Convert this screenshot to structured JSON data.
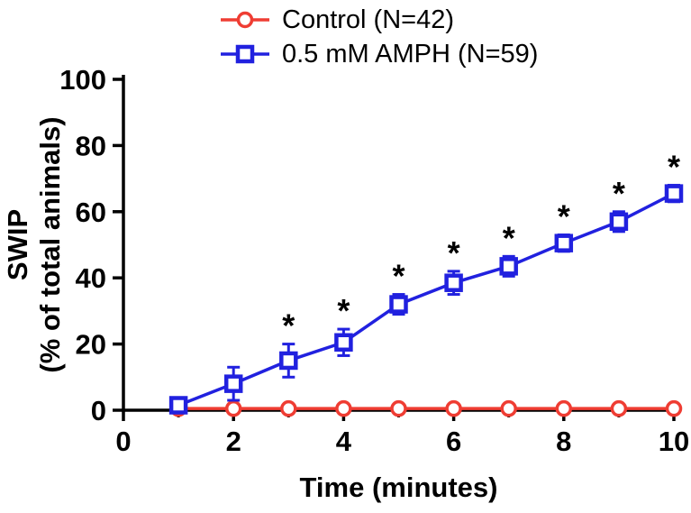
{
  "figure": {
    "background": "#FFFFFF",
    "significance_symbol": "*"
  },
  "chart_data": {
    "type": "line",
    "title": "",
    "xlabel": "Time (minutes)",
    "ylabel": [
      "SWIP",
      "(% of total animals)"
    ],
    "xlim": [
      0,
      10
    ],
    "ylim": [
      0,
      100
    ],
    "x_major_ticks": [
      0,
      2,
      4,
      6,
      8,
      10
    ],
    "x_minor_ticks": [
      1,
      3,
      5,
      7,
      9
    ],
    "y_ticks": [
      0,
      20,
      40,
      60,
      80,
      100
    ],
    "grid": false,
    "legend_position": "top",
    "x": [
      1,
      2,
      3,
      4,
      5,
      6,
      7,
      8,
      9,
      10
    ],
    "series": [
      {
        "name": "Control (N=42)",
        "color": "#EF3D33",
        "marker": "circle",
        "values": [
          0.5,
          0.5,
          0.5,
          0.5,
          0.5,
          0.5,
          0.5,
          0.5,
          0.5,
          0.5
        ],
        "errors": [
          0,
          0,
          0,
          0,
          0,
          0,
          0,
          0,
          0,
          0
        ],
        "significant": [
          false,
          false,
          false,
          false,
          false,
          false,
          false,
          false,
          false,
          false
        ]
      },
      {
        "name": "0.5 mM AMPH (N=59)",
        "color": "#2121DF",
        "marker": "square",
        "values": [
          1.5,
          8,
          15,
          20.5,
          32,
          38.5,
          43.5,
          50.5,
          57,
          65.5
        ],
        "errors": [
          1.5,
          5,
          5,
          4,
          3,
          3.5,
          3,
          2.5,
          3,
          2.5
        ],
        "significant": [
          false,
          false,
          true,
          true,
          true,
          true,
          true,
          true,
          true,
          true
        ]
      }
    ]
  }
}
